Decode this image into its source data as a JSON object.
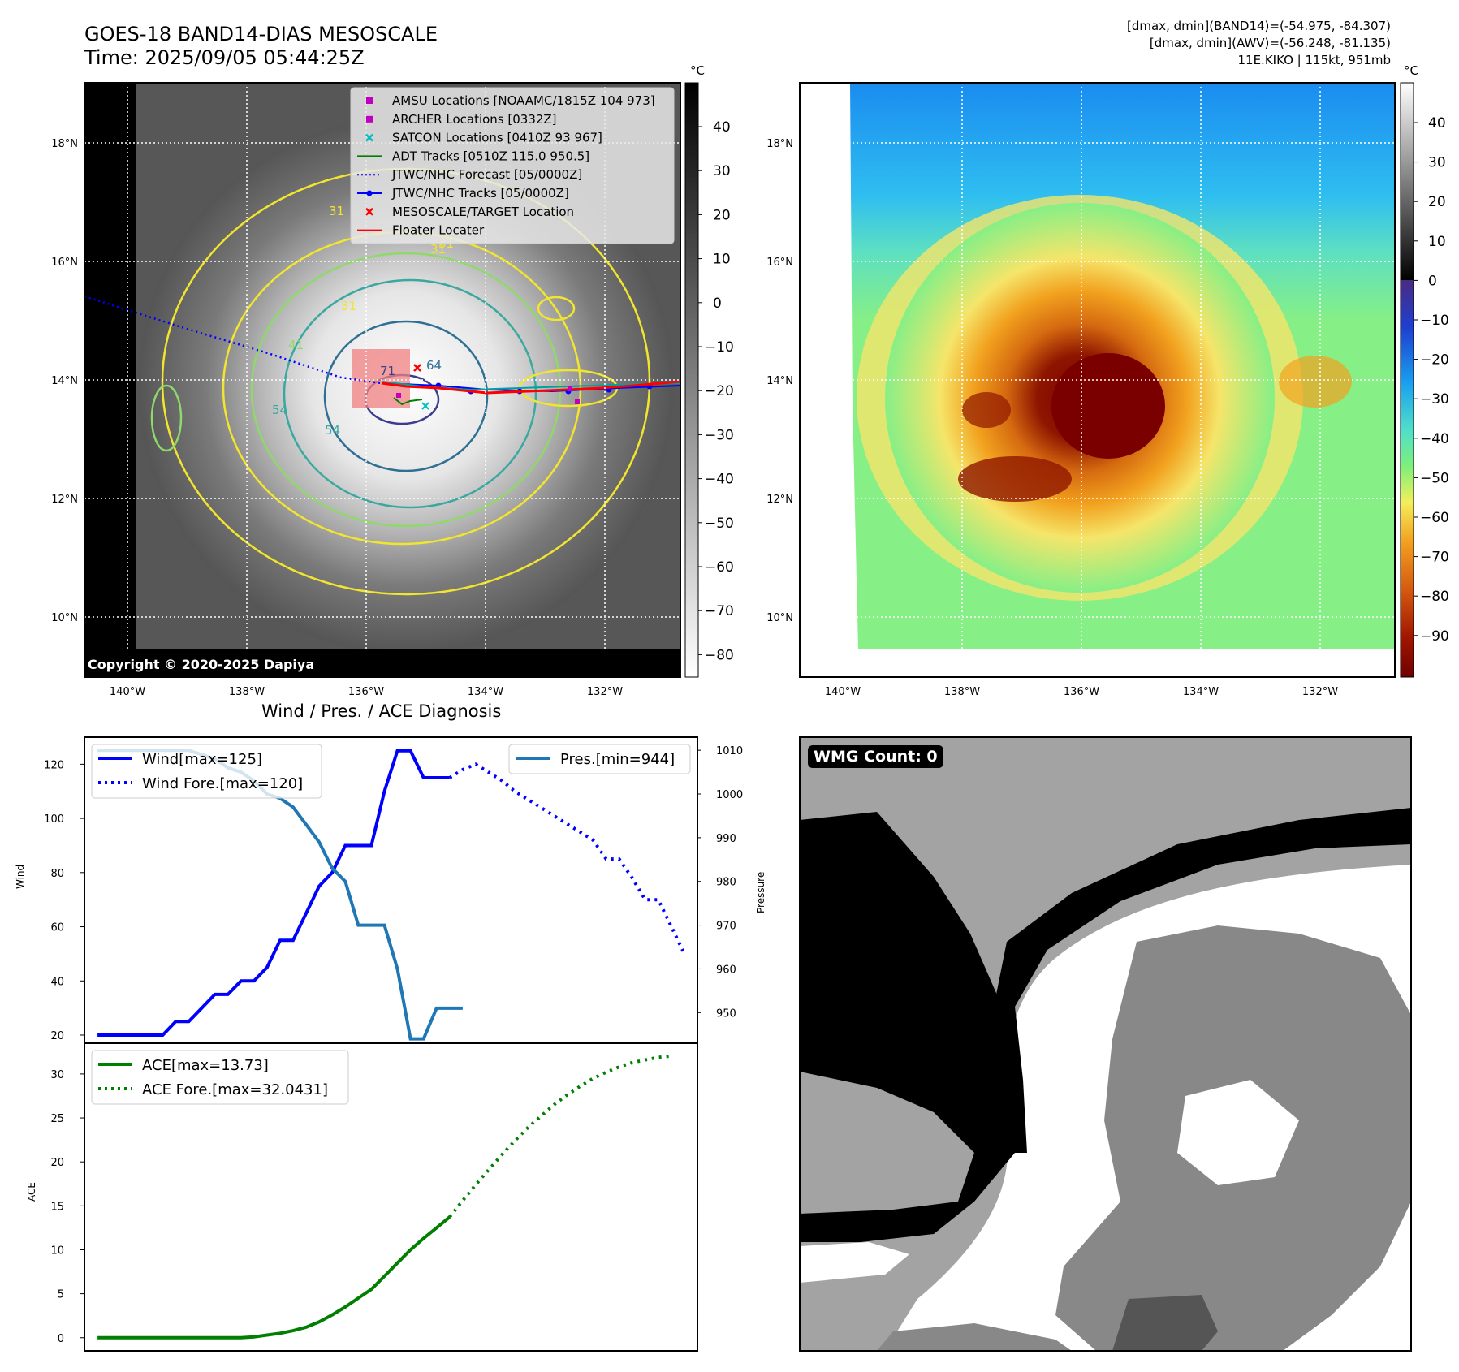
{
  "header": {
    "title_line1": "GOES-18 BAND14-DIAS MESOSCALE",
    "title_line2": "Time: 2025/09/05 05:44:25Z",
    "info_line1": "[dmax, dmin](BAND14)=(-54.975, -84.307)",
    "info_line2": "[dmax, dmin](AWV)=(-56.248, -81.135)",
    "info_line3": "11E.KIKO | 115kt, 951mb"
  },
  "colors": {
    "ir_cold": "#ffffff",
    "ir_warm": "#000000",
    "contour_31": "#f2e52e",
    "contour_41": "#8fd96a",
    "contour_54": "#3aa7a0",
    "contour_64": "#2e6f93",
    "contour_71": "#3c3d8c",
    "wind": "#0000ff",
    "pressure": "#1f77b4",
    "ace": "#007f00",
    "track_red": "#ff0000"
  },
  "map_ir": {
    "unit": "°C",
    "colorbar_ticks": [
      "40",
      "30",
      "20",
      "10",
      "0",
      "−10",
      "−20",
      "−30",
      "−40",
      "−50",
      "−60",
      "−70",
      "−80"
    ],
    "lat_labels": [
      "18°N",
      "16°N",
      "14°N",
      "12°N",
      "10°N"
    ],
    "lon_labels": [
      "140°W",
      "138°W",
      "136°W",
      "134°W",
      "132°W"
    ],
    "copyright": "Copyright © 2020-2025 Dapiya",
    "contour_labels": [
      "31",
      "31",
      "31",
      "31",
      "41",
      "54",
      "54",
      "64",
      "71"
    ],
    "legend": [
      {
        "label": "AMSU Locations [NOAAMC/1815Z 104 973]",
        "marker": "square",
        "color": "#bf00bf"
      },
      {
        "label": "ARCHER Locations [0332Z]",
        "marker": "square",
        "color": "#bf00bf"
      },
      {
        "label": "SATCON Locations [0410Z 93 967]",
        "marker": "x",
        "color": "#00bfbf"
      },
      {
        "label": "ADT Tracks [0510Z 115.0 950.5]",
        "marker": "line",
        "color": "#008000"
      },
      {
        "label": "JTWC/NHC Forecast [05/0000Z]",
        "marker": "dotted",
        "color": "#0000ff"
      },
      {
        "label": "JTWC/NHC Tracks [05/0000Z]",
        "marker": "line-dot",
        "color": "#0000ff"
      },
      {
        "label": "MESOSCALE/TARGET Location",
        "marker": "x",
        "color": "#ff0000"
      },
      {
        "label": "Floater Locater",
        "marker": "line",
        "color": "#ff0000"
      }
    ]
  },
  "map_color": {
    "unit": "°C",
    "colorbar_ticks": [
      "40",
      "30",
      "20",
      "10",
      "0",
      "−10",
      "−20",
      "−30",
      "−40",
      "−50",
      "−60",
      "−70",
      "−80",
      "−90"
    ],
    "lat_labels": [
      "18°N",
      "16°N",
      "14°N",
      "12°N",
      "10°N"
    ],
    "lon_labels": [
      "140°W",
      "138°W",
      "136°W",
      "134°W",
      "132°W"
    ]
  },
  "diagnosis": {
    "title": "Wind / Pres. / ACE Diagnosis",
    "wind_axis_label": "Wind",
    "pressure_axis_label": "Pressure",
    "ace_axis_label": "ACE",
    "legend_wind": "Wind[max=125]",
    "legend_wind_fore": "Wind Fore.[max=120]",
    "legend_pres": "Pres.[min=944]",
    "legend_ace": "ACE[max=13.73]",
    "legend_ace_fore": "ACE Fore.[max=32.0431]"
  },
  "wmg": {
    "label": "WMG Count: 0"
  },
  "chart_data": [
    {
      "type": "line",
      "name": "wind-pressure",
      "ylabel": "Wind",
      "y2label": "Pressure",
      "ylim": [
        17,
        130
      ],
      "y2lim": [
        943,
        1013
      ],
      "yticks": [
        20,
        40,
        60,
        80,
        100,
        120
      ],
      "y2ticks": [
        950,
        960,
        970,
        980,
        990,
        1000,
        1010
      ],
      "series": [
        {
          "name": "Wind[max=125]",
          "style": "solid",
          "values": [
            [
              0,
              20
            ],
            [
              1,
              20
            ],
            [
              2,
              20
            ],
            [
              3,
              20
            ],
            [
              4,
              20
            ],
            [
              5,
              20
            ],
            [
              6,
              25
            ],
            [
              7,
              25
            ],
            [
              8,
              30
            ],
            [
              9,
              35
            ],
            [
              10,
              35
            ],
            [
              11,
              40
            ],
            [
              12,
              40
            ],
            [
              13,
              45
            ],
            [
              14,
              55
            ],
            [
              15,
              55
            ],
            [
              16,
              65
            ],
            [
              17,
              75
            ],
            [
              18,
              80
            ],
            [
              19,
              90
            ],
            [
              20,
              90
            ],
            [
              21,
              90
            ],
            [
              22,
              110
            ],
            [
              23,
              125
            ],
            [
              24,
              125
            ],
            [
              25,
              115
            ],
            [
              26,
              115
            ],
            [
              27,
              115
            ]
          ]
        },
        {
          "name": "Wind Fore.[max=120]",
          "style": "dotted",
          "values": [
            [
              27,
              115
            ],
            [
              28,
              118
            ],
            [
              29,
              120
            ],
            [
              30,
              117
            ],
            [
              31,
              114
            ],
            [
              32,
              110
            ],
            [
              33,
              107
            ],
            [
              34,
              104
            ],
            [
              35,
              101
            ],
            [
              36,
              98
            ],
            [
              37,
              95
            ],
            [
              38,
              92
            ],
            [
              39,
              85
            ],
            [
              40,
              85
            ],
            [
              41,
              78
            ],
            [
              42,
              70
            ],
            [
              43,
              70
            ],
            [
              44,
              60
            ],
            [
              45,
              50
            ]
          ]
        },
        {
          "name": "Pres.[min=944]",
          "style": "solid",
          "axis": "right",
          "values": [
            [
              0,
              1010
            ],
            [
              1,
              1010
            ],
            [
              2,
              1010
            ],
            [
              3,
              1010
            ],
            [
              4,
              1010
            ],
            [
              5,
              1010
            ],
            [
              6,
              1010
            ],
            [
              7,
              1010
            ],
            [
              8,
              1009
            ],
            [
              9,
              1008
            ],
            [
              10,
              1006
            ],
            [
              11,
              1005
            ],
            [
              12,
              1003
            ],
            [
              13,
              1000
            ],
            [
              14,
              999
            ],
            [
              15,
              997
            ],
            [
              16,
              993
            ],
            [
              17,
              989
            ],
            [
              18,
              983
            ],
            [
              19,
              980
            ],
            [
              20,
              970
            ],
            [
              21,
              970
            ],
            [
              22,
              970
            ],
            [
              23,
              960
            ],
            [
              24,
              944
            ],
            [
              25,
              944
            ],
            [
              26,
              951
            ],
            [
              27,
              951
            ],
            [
              28,
              951
            ]
          ]
        }
      ]
    },
    {
      "type": "line",
      "name": "ace",
      "ylabel": "ACE",
      "ylim": [
        -1.5,
        33.5
      ],
      "yticks": [
        0,
        5,
        10,
        15,
        20,
        25,
        30
      ],
      "series": [
        {
          "name": "ACE[max=13.73]",
          "style": "solid",
          "values": [
            [
              0,
              0
            ],
            [
              1,
              0
            ],
            [
              2,
              0
            ],
            [
              3,
              0
            ],
            [
              4,
              0
            ],
            [
              5,
              0
            ],
            [
              6,
              0
            ],
            [
              7,
              0
            ],
            [
              8,
              0
            ],
            [
              9,
              0
            ],
            [
              10,
              0
            ],
            [
              11,
              0
            ],
            [
              12,
              0.1
            ],
            [
              13,
              0.3
            ],
            [
              14,
              0.5
            ],
            [
              15,
              0.8
            ],
            [
              16,
              1.2
            ],
            [
              17,
              1.8
            ],
            [
              18,
              2.6
            ],
            [
              19,
              3.5
            ],
            [
              20,
              4.5
            ],
            [
              21,
              5.5
            ],
            [
              22,
              7
            ],
            [
              23,
              8.5
            ],
            [
              24,
              10
            ],
            [
              25,
              11.3
            ],
            [
              26,
              12.5
            ],
            [
              27,
              13.73
            ]
          ]
        },
        {
          "name": "ACE Fore.[max=32.0431]",
          "style": "dotted",
          "values": [
            [
              27,
              13.73
            ],
            [
              28,
              15.6
            ],
            [
              29,
              17.4
            ],
            [
              30,
              19.1
            ],
            [
              31,
              20.8
            ],
            [
              32,
              22.4
            ],
            [
              33,
              23.9
            ],
            [
              34,
              25.2
            ],
            [
              35,
              26.5
            ],
            [
              36,
              27.6
            ],
            [
              37,
              28.6
            ],
            [
              38,
              29.5
            ],
            [
              39,
              30.2
            ],
            [
              40,
              30.8
            ],
            [
              41,
              31.3
            ],
            [
              42,
              31.6
            ],
            [
              43,
              31.9
            ],
            [
              44,
              32.0431
            ]
          ]
        }
      ]
    }
  ]
}
